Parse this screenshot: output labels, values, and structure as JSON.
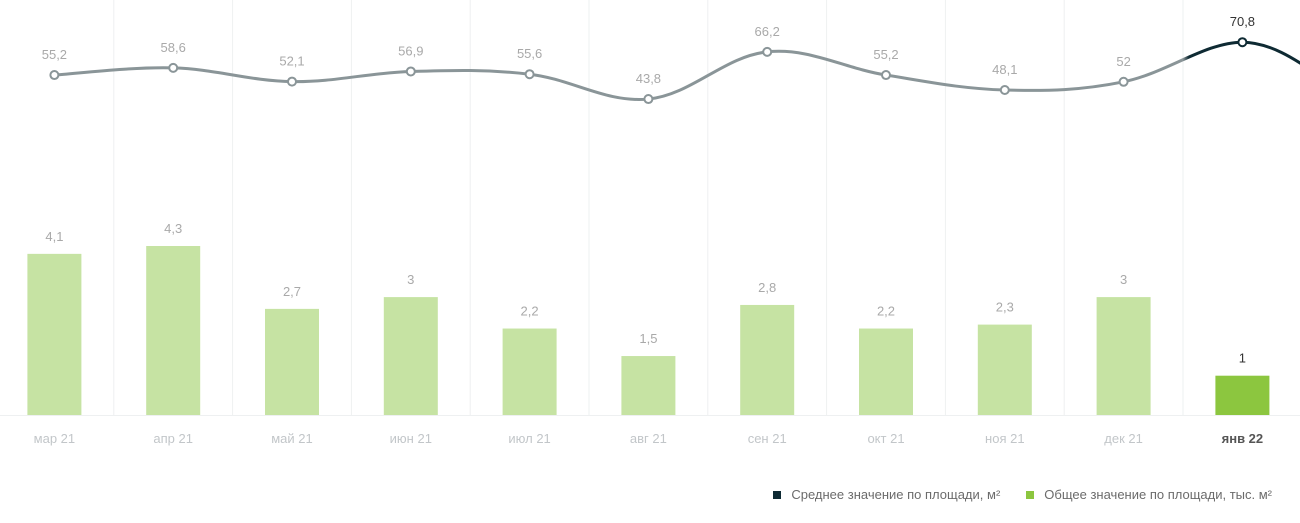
{
  "chart_data": {
    "type": "bar",
    "categories": [
      "мар 21",
      "апр 21",
      "май 21",
      "июн 21",
      "июл 21",
      "авг 21",
      "сен 21",
      "окт 21",
      "ноя 21",
      "дек 21",
      "янв 22"
    ],
    "highlighted_category": "янв 22",
    "series": [
      {
        "name": "Среднее значение по площади, м²",
        "type": "line",
        "values": [
          55.2,
          58.6,
          52.1,
          56.9,
          55.6,
          43.8,
          66.2,
          55.2,
          48.1,
          52,
          70.8
        ],
        "labels": [
          "55,2",
          "58,6",
          "52,1",
          "56,9",
          "55,6",
          "43,8",
          "66,2",
          "55,2",
          "48,1",
          "52",
          "70,8"
        ],
        "color": "#8a9598",
        "highlight_color": "#0e2a33"
      },
      {
        "name": "Общее значение по площади, тыс. м²",
        "type": "bar",
        "values": [
          4.1,
          4.3,
          2.7,
          3,
          2.2,
          1.5,
          2.8,
          2.2,
          2.3,
          3,
          1
        ],
        "labels": [
          "4,1",
          "4,3",
          "2,7",
          "3",
          "2,2",
          "1,5",
          "2,8",
          "2,2",
          "2,3",
          "3",
          "1"
        ],
        "color": "#c6e3a3",
        "highlight_color": "#8cc63f"
      }
    ],
    "grid": "vertical",
    "legend_position": "bottom-right"
  },
  "legend": [
    {
      "label": "Среднее значение по площади, м²",
      "color": "#0e2a33"
    },
    {
      "label": "Общее значение по площади, тыс. м²",
      "color": "#8cc63f"
    }
  ]
}
